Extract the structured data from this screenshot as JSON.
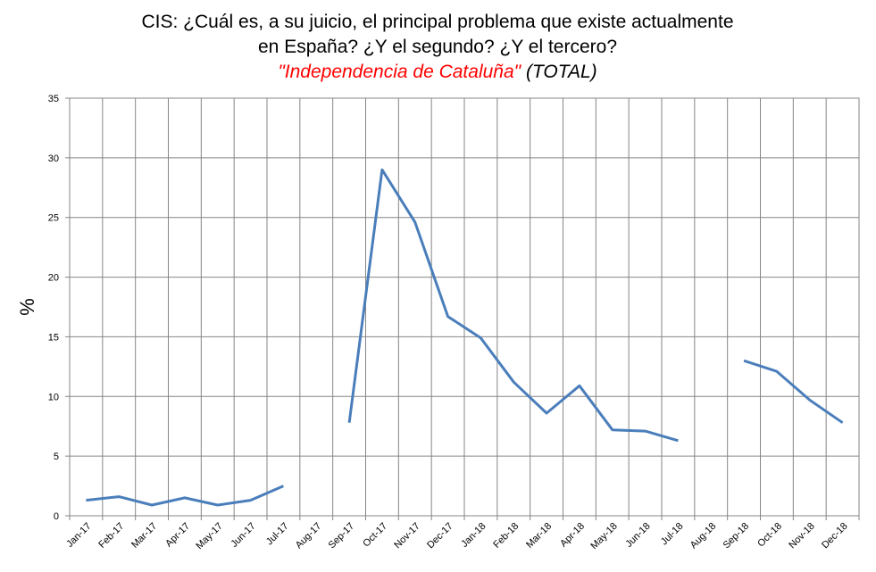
{
  "chart_data": {
    "type": "line",
    "title": "CIS: ¿Cuál es, a su juicio, el principal problema que existe actualmente",
    "title_line2": "en España? ¿Y el segundo? ¿Y el tercero?",
    "subtitle_highlight": "\"Independencia de Cataluña\"",
    "subtitle_rest": "(TOTAL)",
    "highlight_color": "#ff0000",
    "y_label": "%",
    "categories": [
      "Jan-17",
      "Feb-17",
      "Mar-17",
      "Apr-17",
      "May-17",
      "Jun-17",
      "Jul-17",
      "Aug-17",
      "Sep-17",
      "Oct-17",
      "Nov-17",
      "Dec-17",
      "Jan-18",
      "Feb-18",
      "Mar-18",
      "Apr-18",
      "May-18",
      "Jun-18",
      "Jul-18",
      "Aug-18",
      "Sep-18",
      "Oct-18",
      "Nov-18",
      "Dec-18"
    ],
    "values": [
      1.3,
      1.6,
      0.9,
      1.5,
      0.9,
      1.3,
      2.5,
      null,
      7.8,
      29.0,
      24.6,
      16.7,
      14.9,
      11.2,
      8.6,
      10.9,
      7.2,
      7.1,
      6.3,
      null,
      13.0,
      12.1,
      9.7,
      7.8
    ],
    "color": "#4a7ebb",
    "ylim": [
      0,
      35
    ],
    "yticks": [
      0,
      5,
      10,
      15,
      20,
      25,
      30,
      35
    ],
    "grid": true
  }
}
